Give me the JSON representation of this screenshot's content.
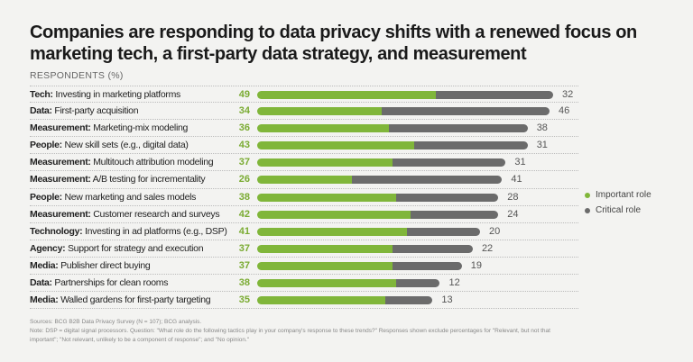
{
  "chart_data": {
    "type": "bar",
    "orientation": "horizontal",
    "stacked": true,
    "title": "Companies are responding to data privacy shifts with a renewed focus on marketing tech, a first-party data strategy, and measurement",
    "ylabel": "RESPONDENTS (%)",
    "categories": [
      {
        "prefix": "Tech:",
        "text": "Investing in marketing platforms"
      },
      {
        "prefix": "Data:",
        "text": "First-party acquisition"
      },
      {
        "prefix": "Measurement:",
        "text": "Marketing-mix modeling"
      },
      {
        "prefix": "People:",
        "text": "New skill sets (e.g., digital data)"
      },
      {
        "prefix": "Measurement:",
        "text": "Multitouch attribution modeling"
      },
      {
        "prefix": "Measurement:",
        "text": "A/B testing for incrementality"
      },
      {
        "prefix": "People:",
        "text": "New marketing and sales models"
      },
      {
        "prefix": "Measurement:",
        "text": "Customer research and surveys"
      },
      {
        "prefix": "Technology:",
        "text": "Investing in ad platforms (e.g., DSP)"
      },
      {
        "prefix": "Agency:",
        "text": "Support for strategy and execution"
      },
      {
        "prefix": "Media:",
        "text": "Publisher direct buying"
      },
      {
        "prefix": "Data:",
        "text": "Partnerships for clean rooms"
      },
      {
        "prefix": "Media:",
        "text": "Walled gardens for first-party targeting"
      }
    ],
    "series": [
      {
        "name": "Important role",
        "color": "#80b63a",
        "values": [
          49,
          34,
          36,
          43,
          37,
          26,
          38,
          42,
          41,
          37,
          37,
          38,
          35
        ]
      },
      {
        "name": "Critical role",
        "color": "#6b6b6b",
        "values": [
          32,
          46,
          38,
          31,
          31,
          41,
          28,
          24,
          20,
          22,
          19,
          12,
          13
        ]
      }
    ],
    "legend_position": "right",
    "grid": false
  },
  "notes": {
    "sources": "Sources: BCG B2B Data Privacy Survey (N = 107); BCG analysis.",
    "note": "Note: DSP = digital signal processors. Question: \"What role do the following tactics play in your company's response to these trends?\" Responses shown exclude percentages for \"Relevant, but not that important\"; \"Not relevant, unlikely to be a component of response\"; and \"No opinion.\""
  }
}
